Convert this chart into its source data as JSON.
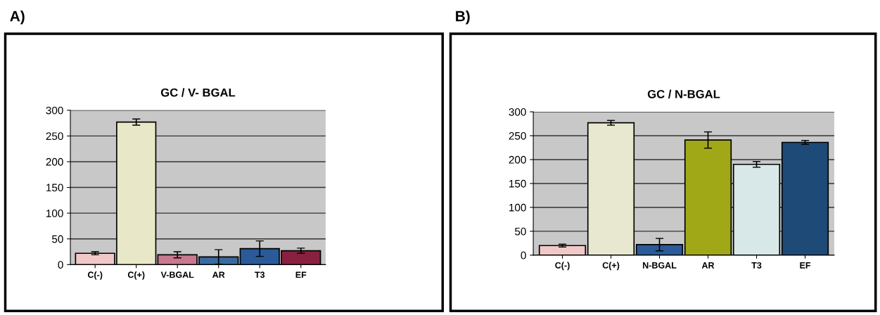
{
  "chart_data": [
    {
      "type": "bar",
      "title": "GC / V- BGAL",
      "annotations": [
        "A)"
      ],
      "categories": [
        "C(-)",
        "C(+)",
        "V-BGAL",
        "AR",
        "T3",
        "EF"
      ],
      "values": [
        22,
        277,
        19,
        15,
        31,
        27
      ],
      "errors": [
        3,
        6,
        6,
        14,
        15,
        5
      ],
      "colors": [
        "#f0c8c8",
        "#e8e8c8",
        "#c87890",
        "#3a6aa0",
        "#2a5a98",
        "#8a2040"
      ],
      "ylim": [
        0,
        300
      ],
      "yticks": [
        0,
        50,
        100,
        150,
        200,
        250,
        300
      ],
      "grid": "y"
    },
    {
      "type": "bar",
      "title": "GC / N-BGAL",
      "annotations": [
        "B)"
      ],
      "categories": [
        "C(-)",
        "C(+)",
        "N-BGAL",
        "AR",
        "T3",
        "EF"
      ],
      "values": [
        20,
        277,
        22,
        241,
        190,
        236
      ],
      "errors": [
        3,
        5,
        13,
        17,
        6,
        4
      ],
      "colors": [
        "#f0c8c8",
        "#e8e8d0",
        "#2a5a98",
        "#a0a818",
        "#d8e8e8",
        "#1e4a78"
      ],
      "ylim": [
        0,
        300
      ],
      "yticks": [
        0,
        50,
        100,
        150,
        200,
        250,
        300
      ],
      "grid": "y"
    }
  ]
}
